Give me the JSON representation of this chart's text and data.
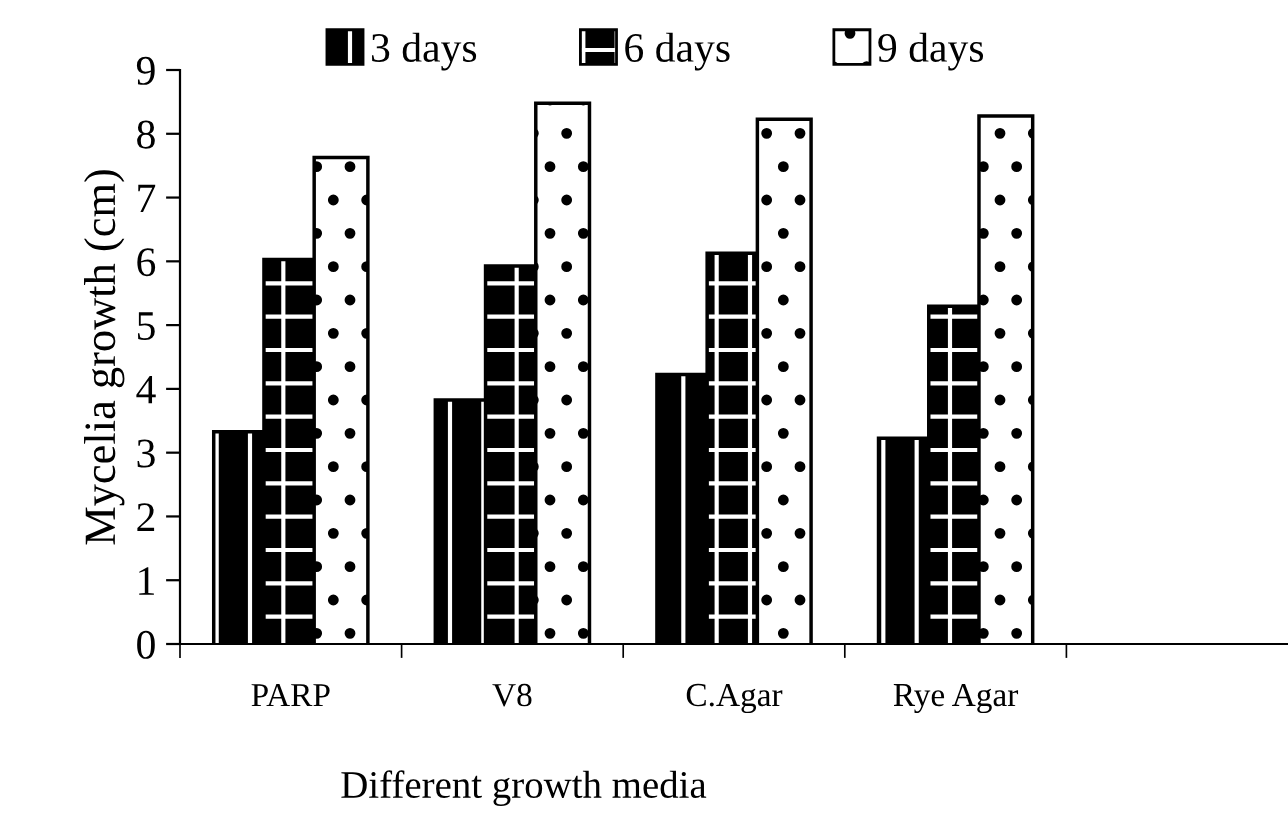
{
  "chart_data": {
    "type": "bar",
    "xlabel": "Different growth media",
    "ylabel": "Mycelia growth (cm)",
    "categories": [
      "PARP",
      "V8",
      "C.Agar",
      "Rye Agar",
      null
    ],
    "series": [
      {
        "name": "3 days",
        "color": "#000000",
        "values": [
          3.3,
          3.8,
          4.2,
          3.2,
          null
        ]
      },
      {
        "name": "6 days",
        "color": "#000000",
        "values": [
          6.0,
          5.9,
          6.1,
          5.27,
          null
        ]
      },
      {
        "name": "9 days",
        "color": "#ffffff",
        "values": [
          7.6,
          8.45,
          8.2,
          8.25,
          null
        ]
      }
    ],
    "ylim": [
      0,
      9
    ],
    "yticks": [
      0,
      1,
      2,
      3,
      4,
      5,
      6,
      7,
      8,
      9
    ],
    "grid": false,
    "legend": "top"
  }
}
